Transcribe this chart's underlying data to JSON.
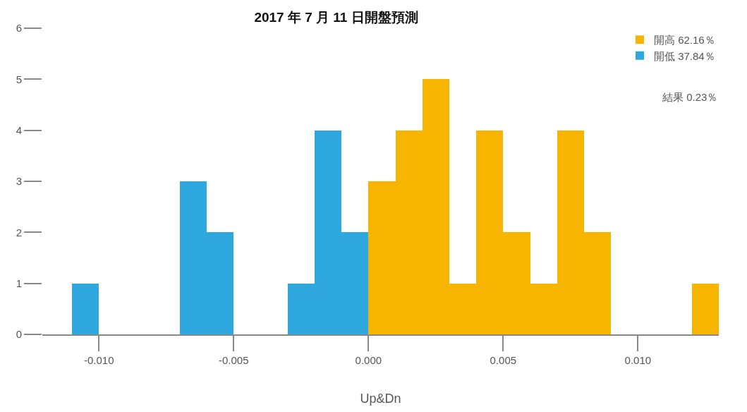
{
  "chart_data": {
    "type": "histogram",
    "title": "2017 年 7 月 11 日開盤預測",
    "xlabel": "Up&Dn",
    "bins": [
      -0.011,
      -0.01,
      -0.009,
      -0.008,
      -0.007,
      -0.006,
      -0.005,
      -0.004,
      -0.003,
      -0.002,
      -0.001,
      0,
      0.001,
      0.002,
      0.003,
      0.004,
      0.005,
      0.006,
      0.007,
      0.008,
      0.009,
      0.01,
      0.011,
      0.012,
      0.013
    ],
    "series": [
      {
        "name": "開高 62.16％",
        "color": "#f7b500",
        "values": [
          null,
          null,
          null,
          null,
          null,
          null,
          null,
          null,
          null,
          null,
          null,
          3,
          4,
          5,
          1,
          4,
          2,
          1,
          4,
          2,
          0,
          0,
          0,
          1
        ]
      },
      {
        "name": "開低 37.84％",
        "color": "#2fa8e0",
        "values": [
          1,
          0,
          0,
          0,
          3,
          2,
          0,
          0,
          1,
          4,
          2,
          null,
          null,
          null,
          null,
          null,
          null,
          null,
          null,
          null,
          null,
          null,
          null,
          null
        ]
      }
    ],
    "annotations": [
      "結果 0.23％"
    ],
    "xlim": [
      -0.0121,
      0.013
    ],
    "xticks": [
      {
        "value": -0.01,
        "label": "-0.010"
      },
      {
        "value": -0.005,
        "label": "-0.005"
      },
      {
        "value": 0,
        "label": "0.000"
      },
      {
        "value": 0.005,
        "label": "0.005"
      },
      {
        "value": 0.01,
        "label": "0.010"
      }
    ],
    "ylim": [
      0,
      6
    ],
    "yticks": [
      0,
      1,
      2,
      3,
      4,
      5,
      6
    ],
    "legend": "top right"
  }
}
